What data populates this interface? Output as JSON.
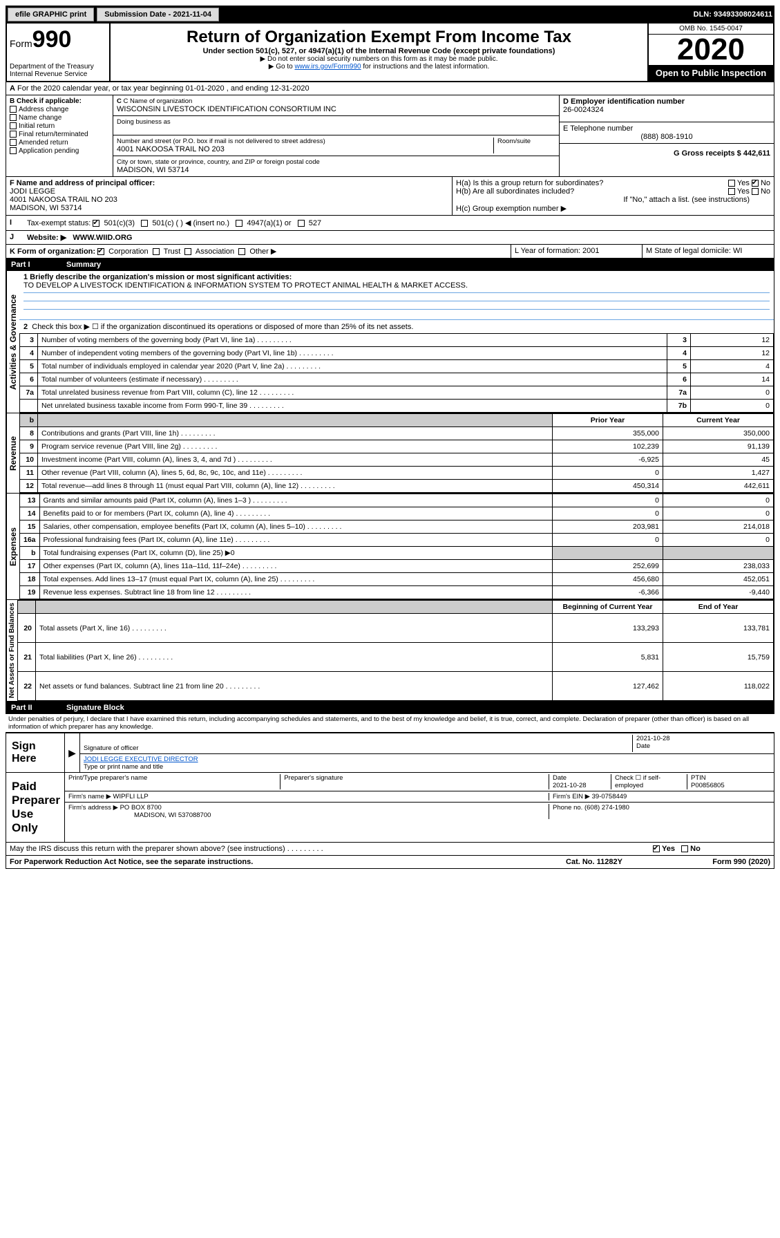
{
  "topbar": {
    "efile": "efile GRAPHIC print",
    "submission_label": "Submission Date - 2021-11-04",
    "dln_label": "DLN: 93493308024611"
  },
  "header": {
    "form_prefix": "Form",
    "form_num": "990",
    "dept": "Department of the Treasury Internal Revenue Service",
    "title": "Return of Organization Exempt From Income Tax",
    "subtitle": "Under section 501(c), 527, or 4947(a)(1) of the Internal Revenue Code (except private foundations)",
    "sub2": "▶ Do not enter social security numbers on this form as it may be made public.",
    "sub3_pre": "▶ Go to ",
    "sub3_link": "www.irs.gov/Form990",
    "sub3_post": " for instructions and the latest information.",
    "omb": "OMB No. 1545-0047",
    "year": "2020",
    "open": "Open to Public Inspection"
  },
  "rowA": "For the 2020 calendar year, or tax year beginning 01-01-2020   , and ending 12-31-2020",
  "sectionB": {
    "label": "B Check if applicable:",
    "items": [
      "Address change",
      "Name change",
      "Initial return",
      "Final return/terminated",
      "Amended return",
      "Application pending"
    ],
    "c_label": "C Name of organization",
    "org_name": "WISCONSIN LIVESTOCK IDENTIFICATION CONSORTIUM INC",
    "dba": "Doing business as",
    "addr_label": "Number and street (or P.O. box if mail is not delivered to street address)",
    "room": "Room/suite",
    "addr": "4001 NAKOOSA TRAIL NO 203",
    "city_label": "City or town, state or province, country, and ZIP or foreign postal code",
    "city": "MADISON, WI  53714",
    "d_label": "D Employer identification number",
    "ein": "26-0024324",
    "e_label": "E Telephone number",
    "phone": "(888) 808-1910",
    "g_label": "G Gross receipts $ 442,611"
  },
  "rowF": {
    "label": "F  Name and address of principal officer:",
    "name": "JODI LEGGE",
    "addr1": "4001 NAKOOSA TRAIL NO 203",
    "addr2": "MADISON, WI  53714",
    "ha": "H(a)  Is this a group return for subordinates?",
    "hb": "H(b)  Are all subordinates included?",
    "hb_note": "If \"No,\" attach a list. (see instructions)",
    "hc": "H(c)  Group exemption number ▶",
    "yes": "Yes",
    "no": "No"
  },
  "rowI": {
    "label": "Tax-exempt status:",
    "opts": [
      "501(c)(3)",
      "501(c) (  ) ◀ (insert no.)",
      "4947(a)(1) or",
      "527"
    ]
  },
  "rowJ": {
    "label": "Website: ▶",
    "val": "WWW.WIID.ORG"
  },
  "rowK": {
    "label": "K Form of organization:",
    "opts": [
      "Corporation",
      "Trust",
      "Association",
      "Other ▶"
    ],
    "l": "L Year of formation: 2001",
    "m": "M State of legal domicile: WI"
  },
  "part1": {
    "num": "Part I",
    "title": "Summary"
  },
  "summary": {
    "q1": "1 Briefly describe the organization's mission or most significant activities:",
    "mission": "TO DEVELOP A LIVESTOCK IDENTIFICATION & INFORMATION SYSTEM TO PROTECT ANIMAL HEALTH & MARKET ACCESS.",
    "q2": "Check this box ▶ ☐  if the organization discontinued its operations or disposed of more than 25% of its net assets.",
    "governance_label": "Activities & Governance",
    "revenue_label": "Revenue",
    "expenses_label": "Expenses",
    "netassets_label": "Net Assets or Fund Balances",
    "prior": "Prior Year",
    "current": "Current Year",
    "begin": "Beginning of Current Year",
    "end": "End of Year",
    "rows_gov": [
      {
        "n": "3",
        "label": "Number of voting members of the governing body (Part VI, line 1a)",
        "box": "3",
        "val": "12"
      },
      {
        "n": "4",
        "label": "Number of independent voting members of the governing body (Part VI, line 1b)",
        "box": "4",
        "val": "12"
      },
      {
        "n": "5",
        "label": "Total number of individuals employed in calendar year 2020 (Part V, line 2a)",
        "box": "5",
        "val": "4"
      },
      {
        "n": "6",
        "label": "Total number of volunteers (estimate if necessary)",
        "box": "6",
        "val": "14"
      },
      {
        "n": "7a",
        "label": "Total unrelated business revenue from Part VIII, column (C), line 12",
        "box": "7a",
        "val": "0"
      },
      {
        "n": "",
        "label": "Net unrelated business taxable income from Form 990-T, line 39",
        "box": "7b",
        "val": "0"
      }
    ],
    "rows_rev": [
      {
        "n": "8",
        "label": "Contributions and grants (Part VIII, line 1h)",
        "p": "355,000",
        "c": "350,000"
      },
      {
        "n": "9",
        "label": "Program service revenue (Part VIII, line 2g)",
        "p": "102,239",
        "c": "91,139"
      },
      {
        "n": "10",
        "label": "Investment income (Part VIII, column (A), lines 3, 4, and 7d )",
        "p": "-6,925",
        "c": "45"
      },
      {
        "n": "11",
        "label": "Other revenue (Part VIII, column (A), lines 5, 6d, 8c, 9c, 10c, and 11e)",
        "p": "0",
        "c": "1,427"
      },
      {
        "n": "12",
        "label": "Total revenue—add lines 8 through 11 (must equal Part VIII, column (A), line 12)",
        "p": "450,314",
        "c": "442,611"
      }
    ],
    "rows_exp": [
      {
        "n": "13",
        "label": "Grants and similar amounts paid (Part IX, column (A), lines 1–3 )",
        "p": "0",
        "c": "0"
      },
      {
        "n": "14",
        "label": "Benefits paid to or for members (Part IX, column (A), line 4)",
        "p": "0",
        "c": "0"
      },
      {
        "n": "15",
        "label": "Salaries, other compensation, employee benefits (Part IX, column (A), lines 5–10)",
        "p": "203,981",
        "c": "214,018"
      },
      {
        "n": "16a",
        "label": "Professional fundraising fees (Part IX, column (A), line 11e)",
        "p": "0",
        "c": "0"
      },
      {
        "n": "b",
        "label": "Total fundraising expenses (Part IX, column (D), line 25) ▶0",
        "p": "",
        "c": "",
        "grey": true
      },
      {
        "n": "17",
        "label": "Other expenses (Part IX, column (A), lines 11a–11d, 11f–24e)",
        "p": "252,699",
        "c": "238,033"
      },
      {
        "n": "18",
        "label": "Total expenses. Add lines 13–17 (must equal Part IX, column (A), line 25)",
        "p": "456,680",
        "c": "452,051"
      },
      {
        "n": "19",
        "label": "Revenue less expenses. Subtract line 18 from line 12",
        "p": "-6,366",
        "c": "-9,440"
      }
    ],
    "rows_net": [
      {
        "n": "20",
        "label": "Total assets (Part X, line 16)",
        "p": "133,293",
        "c": "133,781"
      },
      {
        "n": "21",
        "label": "Total liabilities (Part X, line 26)",
        "p": "5,831",
        "c": "15,759"
      },
      {
        "n": "22",
        "label": "Net assets or fund balances. Subtract line 21 from line 20",
        "p": "127,462",
        "c": "118,022"
      }
    ],
    "dots": "   .    .    .    .    .    .    .    .    ."
  },
  "part2": {
    "num": "Part II",
    "title": "Signature Block"
  },
  "sig": {
    "perjury": "Under penalties of perjury, I declare that I have examined this return, including accompanying schedules and statements, and to the best of my knowledge and belief, it is true, correct, and complete. Declaration of preparer (other than officer) is based on all information of which preparer has any knowledge.",
    "sign_here": "Sign Here",
    "sig_officer": "Signature of officer",
    "date1": "2021-10-28",
    "date_label": "Date",
    "officer": "JODI LEGGE EXECUTIVE DIRECTOR",
    "type_name": "Type or print name and title",
    "paid": "Paid Preparer Use Only",
    "print_type": "Print/Type preparer's name",
    "prep_sig": "Preparer's signature",
    "date2": "2021-10-28",
    "check_self": "Check ☐ if self-employed",
    "ptin_label": "PTIN",
    "ptin": "P00856805",
    "firm_name_l": "Firm's name    ▶",
    "firm_name": "WIPFLI LLP",
    "firm_ein_l": "Firm's EIN ▶",
    "firm_ein": "39-0758449",
    "firm_addr_l": "Firm's address ▶",
    "firm_addr1": "PO BOX 8700",
    "firm_addr2": "MADISON, WI  537088700",
    "phone_l": "Phone no.",
    "phone": "(608) 274-1980"
  },
  "footer": {
    "discuss": "May the IRS discuss this return with the preparer shown above? (see instructions)",
    "yes": "Yes",
    "no": "No",
    "paperwork": "For Paperwork Reduction Act Notice, see the separate instructions.",
    "cat": "Cat. No. 11282Y",
    "form": "Form 990 (2020)"
  }
}
